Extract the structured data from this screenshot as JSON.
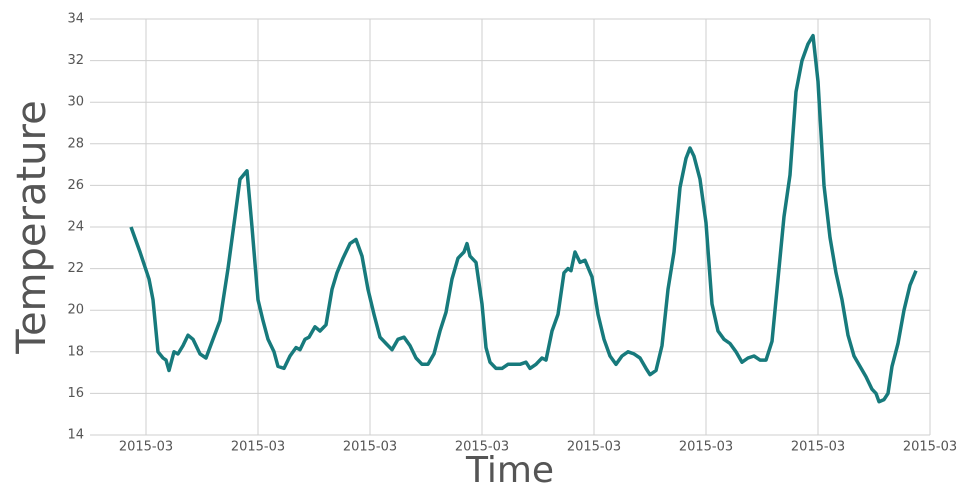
{
  "chart_data": {
    "type": "line",
    "x_label": "Time",
    "y_label": "Temperature",
    "x": [
      -15,
      -6,
      3,
      7,
      12,
      17,
      20,
      23,
      28,
      32,
      37,
      42,
      47,
      54,
      60,
      67,
      74,
      82,
      89,
      94,
      101,
      106,
      112,
      117,
      122,
      128,
      132,
      138,
      144,
      150,
      154,
      159,
      163,
      169,
      174,
      180,
      186,
      191,
      197,
      204,
      210,
      216,
      222,
      228,
      234,
      240,
      246,
      252,
      258,
      264,
      270,
      276,
      282,
      288,
      294,
      300,
      306,
      312,
      318,
      321,
      324,
      330,
      336,
      340,
      344,
      350,
      356,
      362,
      368,
      374,
      380,
      384,
      390,
      396,
      400,
      406,
      412,
      418,
      422,
      425,
      429,
      434,
      439,
      446,
      452,
      458,
      464,
      470,
      476,
      482,
      488,
      494,
      500,
      504,
      510,
      516,
      522,
      528,
      534,
      540,
      544,
      548,
      554,
      560,
      566,
      572,
      578,
      584,
      590,
      596,
      602,
      608,
      614,
      620,
      626,
      632,
      638,
      644,
      650,
      656,
      662,
      667,
      672,
      678,
      684,
      690,
      696,
      702,
      708,
      714,
      720,
      726,
      730,
      733,
      738,
      742,
      746,
      752,
      758,
      764,
      770
    ],
    "series": [
      {
        "name": "Temperature",
        "color": "#177a7c",
        "values": [
          24.0,
          22.8,
          21.5,
          20.5,
          18.0,
          17.7,
          17.6,
          17.1,
          18.0,
          17.9,
          18.3,
          18.8,
          18.6,
          17.9,
          17.7,
          18.6,
          19.5,
          22.0,
          24.5,
          26.3,
          26.7,
          24.0,
          20.5,
          19.5,
          18.6,
          18.0,
          17.3,
          17.2,
          17.8,
          18.2,
          18.1,
          18.6,
          18.7,
          19.2,
          19.0,
          19.3,
          21.0,
          21.8,
          22.5,
          23.2,
          23.4,
          22.6,
          21.0,
          19.8,
          18.7,
          18.4,
          18.1,
          18.6,
          18.7,
          18.3,
          17.7,
          17.4,
          17.4,
          17.9,
          19.0,
          19.9,
          21.5,
          22.5,
          22.8,
          23.2,
          22.6,
          22.3,
          20.3,
          18.2,
          17.5,
          17.2,
          17.2,
          17.4,
          17.4,
          17.4,
          17.5,
          17.2,
          17.4,
          17.7,
          17.6,
          19.0,
          19.8,
          21.8,
          22.0,
          21.9,
          22.8,
          22.3,
          22.4,
          21.6,
          19.8,
          18.6,
          17.8,
          17.4,
          17.8,
          18.0,
          17.9,
          17.7,
          17.2,
          16.9,
          17.1,
          18.3,
          21.0,
          22.8,
          25.9,
          27.3,
          27.8,
          27.4,
          26.3,
          24.2,
          20.3,
          19.0,
          18.6,
          18.4,
          18.0,
          17.5,
          17.7,
          17.8,
          17.6,
          17.6,
          18.5,
          21.5,
          24.5,
          26.5,
          30.5,
          32.0,
          32.8,
          33.2,
          31.0,
          26.0,
          23.5,
          21.8,
          20.5,
          18.8,
          17.8,
          17.3,
          16.8,
          16.2,
          16.0,
          15.6,
          15.7,
          16.0,
          17.3,
          18.4,
          20.0,
          21.2,
          21.9
        ]
      }
    ],
    "xlim": [
      -56,
      784
    ],
    "xticks": [
      {
        "value": 0,
        "label": "2015-03"
      },
      {
        "value": 112,
        "label": "2015-03"
      },
      {
        "value": 224,
        "label": "2015-03"
      },
      {
        "value": 336,
        "label": "2015-03"
      },
      {
        "value": 448,
        "label": "2015-03"
      },
      {
        "value": 560,
        "label": "2015-03"
      },
      {
        "value": 672,
        "label": "2015-03"
      },
      {
        "value": 784,
        "label": "2015-03"
      }
    ],
    "ylim": [
      14,
      34
    ],
    "yticks": [
      14,
      16,
      18,
      20,
      22,
      24,
      26,
      28,
      30,
      32,
      34
    ],
    "grid": true
  }
}
